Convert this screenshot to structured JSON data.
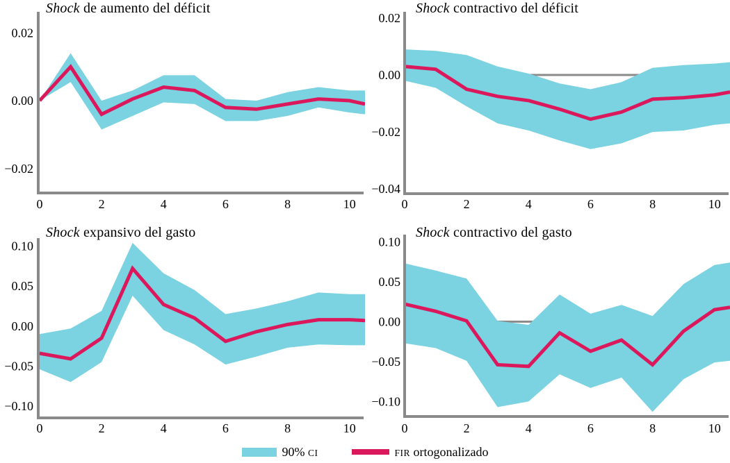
{
  "figure": {
    "colors": {
      "band": "#7BD2E0",
      "line": "#DC185C",
      "axis": "#8A8A8A",
      "zero_line": "#8A8A8A",
      "text": "#000000"
    },
    "legend": {
      "position": "bottom-center",
      "items": [
        {
          "swatch": "band",
          "prefix": "90% ",
          "caps": "CI",
          "suffix": ""
        },
        {
          "swatch": "line",
          "prefix": "",
          "caps": "FIR",
          "suffix": " ortogonalizado"
        }
      ]
    }
  },
  "chart_data": [
    {
      "id": "top-left",
      "type": "line",
      "title_italic": "Shock",
      "title_rest": " de aumento del déficit",
      "x": [
        0,
        1,
        2,
        3,
        4,
        5,
        6,
        7,
        8,
        9,
        10,
        10.5
      ],
      "series": [
        {
          "name": "FIR ortogonalizado",
          "values": [
            0.0,
            0.01,
            -0.004,
            0.0005,
            0.004,
            0.003,
            -0.002,
            -0.0025,
            -0.001,
            0.0005,
            0.0,
            -0.001
          ]
        },
        {
          "name": "90% CI upper",
          "values": [
            0.0,
            0.014,
            0.0,
            0.003,
            0.0075,
            0.0075,
            0.0005,
            0.0,
            0.0025,
            0.004,
            0.003,
            0.003
          ]
        },
        {
          "name": "90% CI lower",
          "values": [
            0.0,
            0.0055,
            -0.0085,
            -0.0045,
            -0.0005,
            -0.001,
            -0.006,
            -0.006,
            -0.0045,
            -0.002,
            -0.0035,
            -0.004
          ]
        }
      ],
      "xticks": [
        0,
        2,
        4,
        6,
        8,
        10
      ],
      "xtick_labels": [
        "0",
        "2",
        "4",
        "6",
        "8",
        "10"
      ],
      "yticks": [
        0.02,
        0,
        -0.02
      ],
      "ytick_labels": [
        "0.02",
        "0.00",
        "−0.02"
      ],
      "xlim": [
        0,
        10.5
      ],
      "ylim": [
        -0.0268,
        0.0262
      ],
      "zero_line": false,
      "grid": false
    },
    {
      "id": "top-right",
      "type": "line",
      "title_italic": "Shock",
      "title_rest": " contractivo del déficit",
      "x": [
        0,
        1,
        2,
        3,
        4,
        5,
        6,
        7,
        8,
        9,
        10,
        10.5
      ],
      "series": [
        {
          "name": "FIR ortogonalizado",
          "values": [
            0.003,
            0.002,
            -0.005,
            -0.0075,
            -0.009,
            -0.012,
            -0.0155,
            -0.013,
            -0.0085,
            -0.008,
            -0.007,
            -0.006
          ]
        },
        {
          "name": "90% CI upper",
          "values": [
            0.009,
            0.0085,
            0.007,
            0.003,
            0.0005,
            -0.003,
            -0.005,
            -0.0025,
            0.0025,
            0.0035,
            0.004,
            0.0045
          ]
        },
        {
          "name": "90% CI lower",
          "values": [
            -0.002,
            -0.0045,
            -0.011,
            -0.017,
            -0.0195,
            -0.023,
            -0.026,
            -0.024,
            -0.02,
            -0.0195,
            -0.0175,
            -0.017
          ]
        }
      ],
      "xticks": [
        0,
        2,
        4,
        6,
        8,
        10
      ],
      "xtick_labels": [
        "0",
        "2",
        "4",
        "6",
        "8",
        "10"
      ],
      "yticks": [
        0.02,
        0,
        -0.02,
        -0.04
      ],
      "ytick_labels": [
        "0.02",
        "0.00",
        "−0.02",
        "−0.04"
      ],
      "xlim": [
        0,
        10.5
      ],
      "ylim": [
        -0.0412,
        0.0222
      ],
      "zero_line": true,
      "grid": false
    },
    {
      "id": "bottom-left",
      "type": "line",
      "title_italic": "Shock",
      "title_rest": " expansivo del gasto",
      "x": [
        0,
        1,
        2,
        3,
        4,
        5,
        6,
        7,
        8,
        9,
        10,
        10.5
      ],
      "series": [
        {
          "name": "FIR ortogonalizado",
          "values": [
            -0.034,
            -0.041,
            -0.015,
            0.072,
            0.027,
            0.01,
            -0.019,
            -0.007,
            0.002,
            0.008,
            0.008,
            0.007
          ]
        },
        {
          "name": "90% CI upper",
          "values": [
            -0.01,
            -0.003,
            0.019,
            0.104,
            0.066,
            0.045,
            0.015,
            0.022,
            0.031,
            0.042,
            0.04,
            0.04
          ]
        },
        {
          "name": "90% CI lower",
          "values": [
            -0.054,
            -0.07,
            -0.045,
            0.038,
            -0.005,
            -0.023,
            -0.048,
            -0.038,
            -0.027,
            -0.023,
            -0.024,
            -0.024
          ]
        }
      ],
      "xticks": [
        0,
        2,
        4,
        6,
        8,
        10
      ],
      "xtick_labels": [
        "0",
        "2",
        "4",
        "6",
        "8",
        "10"
      ],
      "yticks": [
        0.1,
        0.05,
        0,
        -0.05,
        -0.1
      ],
      "ytick_labels": [
        "0.10",
        "0.05",
        "0.00",
        "−0.05",
        "−0.10"
      ],
      "xlim": [
        0,
        10.5
      ],
      "ylim": [
        -0.113,
        0.11
      ],
      "zero_line": false,
      "grid": false
    },
    {
      "id": "bottom-right",
      "type": "line",
      "title_italic": "Shock",
      "title_rest": " contractivo del gasto",
      "x": [
        0,
        1,
        2,
        3,
        4,
        5,
        6,
        7,
        8,
        9,
        10,
        10.5
      ],
      "series": [
        {
          "name": "FIR ortogonalizado",
          "values": [
            0.022,
            0.013,
            0.001,
            -0.054,
            -0.056,
            -0.014,
            -0.037,
            -0.023,
            -0.054,
            -0.012,
            0.015,
            0.018
          ]
        },
        {
          "name": "90% CI upper",
          "values": [
            0.073,
            0.064,
            0.054,
            0.001,
            -0.004,
            0.034,
            0.01,
            0.021,
            0.007,
            0.047,
            0.071,
            0.074
          ]
        },
        {
          "name": "90% CI lower",
          "values": [
            -0.027,
            -0.033,
            -0.049,
            -0.107,
            -0.1,
            -0.066,
            -0.083,
            -0.07,
            -0.113,
            -0.072,
            -0.051,
            -0.049
          ]
        }
      ],
      "xticks": [
        0,
        2,
        4,
        6,
        8,
        10
      ],
      "xtick_labels": [
        "0",
        "2",
        "4",
        "6",
        "8",
        "10"
      ],
      "yticks": [
        0.1,
        0.05,
        0,
        -0.05,
        -0.1
      ],
      "ytick_labels": [
        "0.10",
        "0.05",
        "0.00",
        "−0.05",
        "−0.10"
      ],
      "xlim": [
        0,
        10.5
      ],
      "ylim": [
        -0.117,
        0.109
      ],
      "zero_line": true,
      "grid": false
    }
  ]
}
